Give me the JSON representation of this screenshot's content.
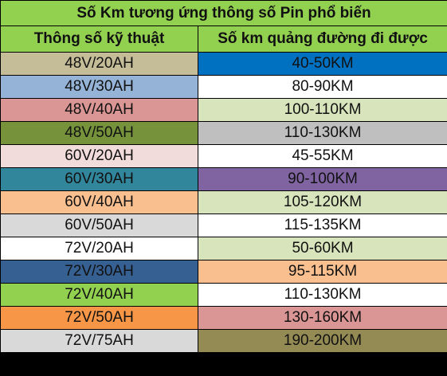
{
  "title": "Số Km tương ứng thông số Pin phổ biến",
  "headers": [
    "Thông số kỹ thuật",
    "Số km quảng đường đi được"
  ],
  "colors": {
    "header_green": "#92d050",
    "border": "#000000"
  },
  "rows": [
    {
      "spec": "48V/20AH",
      "km": "40-50KM",
      "spec_bg": "#c4bd97",
      "km_bg": "#0070c0"
    },
    {
      "spec": "48V/30AH",
      "km": "80-90KM",
      "spec_bg": "#95b3d7",
      "km_bg": "#ffffff"
    },
    {
      "spec": "48V/40AH",
      "km": "100-110KM",
      "spec_bg": "#da9694",
      "km_bg": "#d8e4bc"
    },
    {
      "spec": "48V/50AH",
      "km": "110-130KM",
      "spec_bg": "#76933c",
      "km_bg": "#bfbfbf"
    },
    {
      "spec": "60V/20AH",
      "km": "45-55KM",
      "spec_bg": "#f2dcdb",
      "km_bg": "#ffffff"
    },
    {
      "spec": "60V/30AH",
      "km": "90-100KM",
      "spec_bg": "#31869b",
      "km_bg": "#8064a2"
    },
    {
      "spec": "60V/40AH",
      "km": "105-120KM",
      "spec_bg": "#fabf8f",
      "km_bg": "#d8e4bc"
    },
    {
      "spec": "60V/50AH",
      "km": "115-135KM",
      "spec_bg": "#d9d9d9",
      "km_bg": "#ffffff"
    },
    {
      "spec": "72V/20AH",
      "km": "50-60KM",
      "spec_bg": "#ffffff",
      "km_bg": "#d8e4bc"
    },
    {
      "spec": "72V/30AH",
      "km": "95-115KM",
      "spec_bg": "#366092",
      "km_bg": "#fabf8f"
    },
    {
      "spec": "72V/40AH",
      "km": "110-130KM",
      "spec_bg": "#92d050",
      "km_bg": "#ffffff"
    },
    {
      "spec": "72V/50AH",
      "km": "130-160KM",
      "spec_bg": "#f79646",
      "km_bg": "#da9694"
    },
    {
      "spec": "72V/75AH",
      "km": "190-200KM",
      "spec_bg": "#d9d9d9",
      "km_bg": "#948a54"
    }
  ]
}
